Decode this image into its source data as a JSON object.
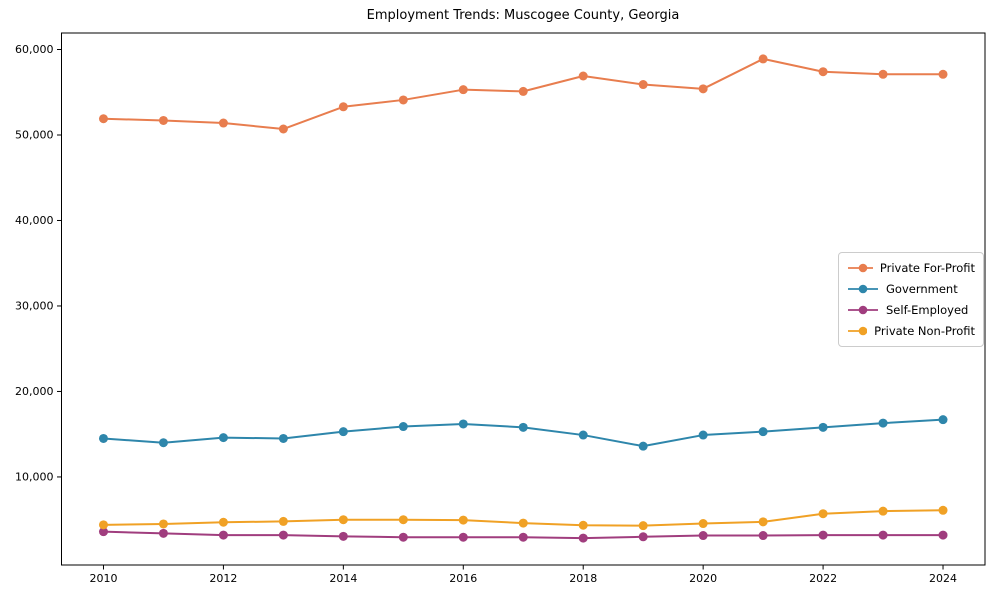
{
  "chart_data": {
    "type": "line",
    "title": "Employment Trends: Muscogee County, Georgia",
    "xlabel": "",
    "ylabel": "",
    "x": [
      2010,
      2011,
      2012,
      2013,
      2014,
      2015,
      2016,
      2017,
      2018,
      2019,
      2020,
      2021,
      2022,
      2023,
      2024
    ],
    "series": [
      {
        "name": "Private For-Profit",
        "color": "#E87D4E",
        "values": [
          51900,
          51700,
          51400,
          50700,
          53300,
          54100,
          55300,
          55100,
          56900,
          55900,
          55400,
          58900,
          57400,
          57100,
          57100
        ]
      },
      {
        "name": "Government",
        "color": "#2E86AB",
        "values": [
          14500,
          14000,
          14600,
          14500,
          15300,
          15900,
          16200,
          15800,
          14900,
          13600,
          14900,
          15300,
          15800,
          16300,
          16700
        ]
      },
      {
        "name": "Self-Employed",
        "color": "#A03D7E",
        "values": [
          3600,
          3400,
          3200,
          3200,
          3050,
          2950,
          2950,
          2950,
          2850,
          3000,
          3150,
          3150,
          3200,
          3200,
          3200
        ]
      },
      {
        "name": "Private Non-Profit",
        "color": "#F0A125",
        "values": [
          4400,
          4500,
          4700,
          4800,
          5000,
          5000,
          4950,
          4600,
          4350,
          4300,
          4550,
          4750,
          5700,
          6000,
          6100
        ]
      }
    ],
    "x_ticks": [
      2010,
      2012,
      2014,
      2016,
      2018,
      2020,
      2022,
      2024
    ],
    "x_tick_labels": [
      "2010",
      "2012",
      "2014",
      "2016",
      "2018",
      "2020",
      "2022",
      "2024"
    ],
    "y_ticks": [
      10000,
      20000,
      30000,
      40000,
      50000,
      60000
    ],
    "y_tick_labels": [
      "10,000",
      "20,000",
      "30,000",
      "40,000",
      "50,000",
      "60,000"
    ],
    "xlim": [
      2009.3,
      2024.7
    ],
    "ylim": [
      -300,
      61930
    ],
    "grid": false,
    "legend_position": "center right",
    "marker": "o",
    "axis_color": "#000000"
  }
}
